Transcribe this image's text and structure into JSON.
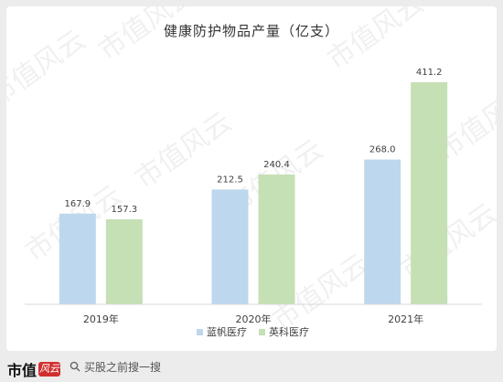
{
  "title": "健康防护物品产量（亿支）",
  "colors": {
    "series_a": "#bdd7ee",
    "series_b": "#c5e0b4",
    "axis": "#d9d9d9",
    "text": "#404040"
  },
  "chart_data": {
    "type": "bar",
    "title": "健康防护物品产量（亿支）",
    "categories": [
      "2019年",
      "2020年",
      "2021年"
    ],
    "series": [
      {
        "name": "蓝帆医疗",
        "values": [
          167.9,
          212.5,
          268.0
        ],
        "labels": [
          "167.9",
          "212.5",
          "268.0"
        ]
      },
      {
        "name": "英科医疗",
        "values": [
          157.3,
          240.4,
          411.2
        ],
        "labels": [
          "157.3",
          "240.4",
          "411.2"
        ]
      }
    ],
    "ylim": [
      0,
      450
    ],
    "grid": false,
    "legend": "bottom"
  },
  "watermark": {
    "text": "市值风云"
  },
  "footer": {
    "logo_text": "市值",
    "logo_seal": "风云",
    "search_icon": "search-icon",
    "search_text": "买股之前搜一搜"
  }
}
